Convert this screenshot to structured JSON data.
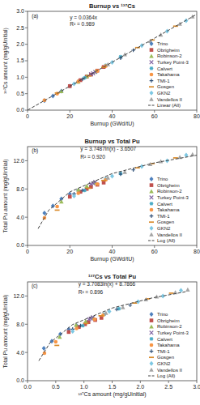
{
  "chart_data": [
    {
      "type": "scatter",
      "title": "Burnup vs ¹³⁷Cs",
      "x_label": "Burnup (GWd/tU)",
      "y_label": "¹³⁷Cs amount (mg/gUinitial)",
      "xlim": [
        0,
        80
      ],
      "xticks": [
        0,
        20,
        40,
        60,
        80
      ],
      "ylim": [
        0,
        3
      ],
      "yticks": [
        {
          "value": 0,
          "label": "0.0"
        },
        0.5,
        {
          "value": 1,
          "label": "1.0"
        },
        1.5,
        {
          "value": 2,
          "label": "2.0"
        },
        2.5,
        {
          "value": 3,
          "label": "3.0"
        }
      ],
      "grid": false,
      "legend": "lower right",
      "annotations": [
        {
          "text": "(a)",
          "x": 2,
          "y": 2.8
        },
        {
          "text": "y = 0.0364x",
          "x": 20,
          "y": 2.75
        },
        {
          "text": "R² = 0.989",
          "x": 20,
          "y": 2.55
        }
      ],
      "series": [
        {
          "name": "Trino",
          "color": "#4f81bd",
          "marker": "diamond",
          "x": [
            8,
            12,
            16,
            20,
            24
          ],
          "values": [
            0.29,
            0.43,
            0.58,
            0.73,
            0.87
          ]
        },
        {
          "name": "Obrigheim",
          "color": "#c0504d",
          "marker": "square",
          "x": [
            20,
            25,
            28,
            30,
            33,
            36
          ],
          "values": [
            0.73,
            0.91,
            1.02,
            1.08,
            1.2,
            1.31
          ]
        },
        {
          "name": "Robinson-2",
          "color": "#9bbb59",
          "marker": "triangle",
          "x": [
            16,
            24,
            28,
            32
          ],
          "values": [
            0.57,
            0.86,
            1.03,
            1.17
          ]
        },
        {
          "name": "Turkey Point-3",
          "color": "#8064a2",
          "marker": "x",
          "x": [
            30,
            31,
            32
          ],
          "values": [
            1.09,
            1.12,
            1.16
          ]
        },
        {
          "name": "Calvert",
          "color": "#4bacc6",
          "marker": "star",
          "x": [
            27,
            37,
            44
          ],
          "values": [
            0.98,
            1.36,
            1.62
          ]
        },
        {
          "name": "Takahama",
          "color": "#f79646",
          "marker": "circle",
          "x": [
            8,
            14,
            24,
            33,
            37
          ],
          "values": [
            0.3,
            0.5,
            0.87,
            1.19,
            1.34
          ]
        },
        {
          "name": "TMI-1",
          "color": "#2c4d75",
          "marker": "plus",
          "x": [
            22,
            26,
            44,
            50
          ],
          "values": [
            0.8,
            0.94,
            1.58,
            1.82
          ]
        },
        {
          "name": "Gosgen",
          "color": "#d98b2b",
          "marker": "dash",
          "x": [
            14,
            29,
            36,
            52,
            59,
            70
          ],
          "values": [
            0.52,
            1.04,
            1.3,
            1.9,
            2.13,
            2.55
          ]
        },
        {
          "name": "GKN2",
          "color": "#7ec8e3",
          "marker": "diamond",
          "x": [
            22,
            40,
            54,
            66,
            75
          ],
          "values": [
            0.8,
            1.45,
            1.96,
            2.4,
            2.72
          ]
        },
        {
          "name": "Vandellos II",
          "color": "#a5a5a5",
          "marker": "triangle",
          "x": [
            38,
            46,
            58,
            63,
            72,
            78
          ],
          "values": [
            1.39,
            1.69,
            2.1,
            2.29,
            2.62,
            2.84
          ]
        },
        {
          "name": "Linear (All)",
          "type": "line",
          "line_style": "dashed",
          "color": "#404040",
          "x": [
            0,
            80
          ],
          "values": [
            0,
            2.912
          ]
        }
      ]
    },
    {
      "type": "scatter",
      "title": "Burnup vs Total Pu",
      "x_label": "Burnup (GWd/tU)",
      "y_label": "Total Pu amount (mg/gUinitial)",
      "xlim": [
        0,
        80
      ],
      "xticks": [
        0,
        20,
        40,
        60,
        80
      ],
      "ylim": [
        0,
        14
      ],
      "yticks": [
        {
          "value": 0,
          "label": "0.0"
        },
        {
          "value": 4,
          "label": "4.0"
        },
        {
          "value": 8,
          "label": "8.0"
        },
        {
          "value": 12,
          "label": "12.0"
        }
      ],
      "grid": false,
      "legend": "lower right",
      "annotations": [
        {
          "text": "(b)",
          "x": 2,
          "y": 13.2
        },
        {
          "text": "y = 3.7487ln(x) - 3.6507",
          "x": 25,
          "y": 13.4
        },
        {
          "text": "R² = 0.920",
          "x": 25,
          "y": 12.3
        }
      ],
      "series": [
        {
          "name": "Trino",
          "color": "#4f81bd",
          "marker": "diamond",
          "x": [
            8,
            12,
            16,
            20,
            24
          ],
          "values": [
            4.6,
            5.6,
            6.6,
            7.3,
            7.8
          ]
        },
        {
          "name": "Obrigheim",
          "color": "#c0504d",
          "marker": "square",
          "x": [
            20,
            25,
            28,
            30,
            33,
            36
          ],
          "values": [
            6.9,
            7.6,
            8.0,
            8.3,
            8.6,
            8.9
          ]
        },
        {
          "name": "Robinson-2",
          "color": "#9bbb59",
          "marker": "triangle",
          "x": [
            16,
            24,
            28,
            32
          ],
          "values": [
            6.2,
            7.9,
            8.4,
            8.9
          ]
        },
        {
          "name": "Turkey Point-3",
          "color": "#8064a2",
          "marker": "x",
          "x": [
            30,
            31,
            32
          ],
          "values": [
            8.7,
            8.8,
            9.0
          ]
        },
        {
          "name": "Calvert",
          "color": "#4bacc6",
          "marker": "star",
          "x": [
            27,
            37,
            44
          ],
          "values": [
            7.8,
            9.4,
            10.2
          ]
        },
        {
          "name": "Takahama",
          "color": "#f79646",
          "marker": "circle",
          "x": [
            8,
            14,
            24,
            33,
            37
          ],
          "values": [
            3.9,
            5.5,
            7.4,
            8.7,
            9.3
          ]
        },
        {
          "name": "TMI-1",
          "color": "#2c4d75",
          "marker": "plus",
          "x": [
            22,
            26,
            44,
            50
          ],
          "values": [
            7.3,
            7.8,
            10.1,
            10.7
          ]
        },
        {
          "name": "Gosgen",
          "color": "#d98b2b",
          "marker": "dash",
          "x": [
            14,
            29,
            36,
            52,
            59,
            70
          ],
          "values": [
            5.0,
            8.1,
            9.2,
            11.0,
            11.6,
            12.4
          ]
        },
        {
          "name": "GKN2",
          "color": "#7ec8e3",
          "marker": "diamond",
          "x": [
            22,
            40,
            54,
            66,
            75
          ],
          "values": [
            7.0,
            9.8,
            11.2,
            12.0,
            12.8
          ]
        },
        {
          "name": "Vandellos II",
          "color": "#a5a5a5",
          "marker": "triangle",
          "x": [
            38,
            46,
            58,
            63,
            72,
            78
          ],
          "values": [
            9.6,
            10.4,
            11.5,
            11.9,
            12.5,
            12.9
          ]
        },
        {
          "name": "Log (All)",
          "type": "line",
          "line_style": "dashed",
          "color": "#404040",
          "x": [
            5,
            10,
            20,
            40,
            60,
            80
          ],
          "values": [
            2.38,
            4.98,
            7.58,
            10.18,
            11.7,
            12.78
          ]
        }
      ]
    },
    {
      "type": "scatter",
      "title": "¹³⁷Cs vs Total Pu",
      "x_label": "¹³⁷Cs amount (mg/gUinitial)",
      "y_label": "Total Pu amount (mg/gUinitial)",
      "xlim": [
        0,
        3
      ],
      "xticks": [
        {
          "value": 0,
          "label": "0.0"
        },
        0.5,
        {
          "value": 1,
          "label": "1.0"
        },
        1.5,
        {
          "value": 2,
          "label": "2.0"
        },
        2.5,
        {
          "value": 3,
          "label": "3.0"
        }
      ],
      "ylim": [
        0,
        14
      ],
      "yticks": [
        {
          "value": 0,
          "label": "0.0"
        },
        {
          "value": 4,
          "label": "4.0"
        },
        {
          "value": 8,
          "label": "8.0"
        },
        {
          "value": 12,
          "label": "12.0"
        }
      ],
      "grid": false,
      "legend": "lower right",
      "annotations": [
        {
          "text": "(c)",
          "x": 0.07,
          "y": 13.2
        },
        {
          "text": "y = 3.7083ln(x) + 8.7866",
          "x": 0.9,
          "y": 13.4
        },
        {
          "text": "R² = 0.896",
          "x": 0.9,
          "y": 12.3
        }
      ],
      "series": [
        {
          "name": "Trino",
          "color": "#4f81bd",
          "marker": "diamond",
          "x": [
            0.29,
            0.43,
            0.58,
            0.73,
            0.87
          ],
          "values": [
            4.6,
            5.6,
            6.6,
            7.3,
            7.8
          ]
        },
        {
          "name": "Obrigheim",
          "color": "#c0504d",
          "marker": "square",
          "x": [
            0.73,
            0.91,
            1.02,
            1.08,
            1.2,
            1.31
          ],
          "values": [
            6.9,
            7.6,
            8.0,
            8.3,
            8.6,
            8.9
          ]
        },
        {
          "name": "Robinson-2",
          "color": "#9bbb59",
          "marker": "triangle",
          "x": [
            0.57,
            0.86,
            1.03,
            1.17
          ],
          "values": [
            6.2,
            7.9,
            8.4,
            8.9
          ]
        },
        {
          "name": "Turkey Point-3",
          "color": "#8064a2",
          "marker": "x",
          "x": [
            1.09,
            1.12,
            1.16
          ],
          "values": [
            8.7,
            8.8,
            9.0
          ]
        },
        {
          "name": "Calvert",
          "color": "#4bacc6",
          "marker": "star",
          "x": [
            0.98,
            1.36,
            1.62
          ],
          "values": [
            7.8,
            9.4,
            10.2
          ]
        },
        {
          "name": "Takahama",
          "color": "#f79646",
          "marker": "circle",
          "x": [
            0.3,
            0.5,
            0.87,
            1.19,
            1.34
          ],
          "values": [
            3.9,
            5.5,
            7.4,
            8.7,
            9.3
          ]
        },
        {
          "name": "TMI-1",
          "color": "#2c4d75",
          "marker": "plus",
          "x": [
            0.8,
            0.94,
            1.58,
            1.82
          ],
          "values": [
            7.3,
            7.8,
            10.1,
            10.7
          ]
        },
        {
          "name": "Gosgen",
          "color": "#d98b2b",
          "marker": "dash",
          "x": [
            0.52,
            1.04,
            1.3,
            1.9,
            2.13,
            2.55
          ],
          "values": [
            5.0,
            8.1,
            9.2,
            11.0,
            11.6,
            12.4
          ]
        },
        {
          "name": "GKN2",
          "color": "#7ec8e3",
          "marker": "diamond",
          "x": [
            0.8,
            1.45,
            1.96,
            2.4,
            2.72
          ],
          "values": [
            7.0,
            9.8,
            11.2,
            12.0,
            12.8
          ]
        },
        {
          "name": "Vandellos II",
          "color": "#a5a5a5",
          "marker": "triangle",
          "x": [
            1.39,
            1.69,
            2.1,
            2.29,
            2.62,
            2.84
          ],
          "values": [
            9.6,
            10.4,
            11.5,
            11.9,
            12.5,
            12.9
          ]
        },
        {
          "name": "Log (All)",
          "type": "line",
          "line_style": "dashed",
          "color": "#404040",
          "x": [
            0.2,
            0.4,
            0.8,
            1.5,
            2.2,
            2.8
          ],
          "values": [
            2.82,
            5.39,
            7.96,
            10.29,
            11.71,
            12.6
          ]
        }
      ]
    }
  ]
}
